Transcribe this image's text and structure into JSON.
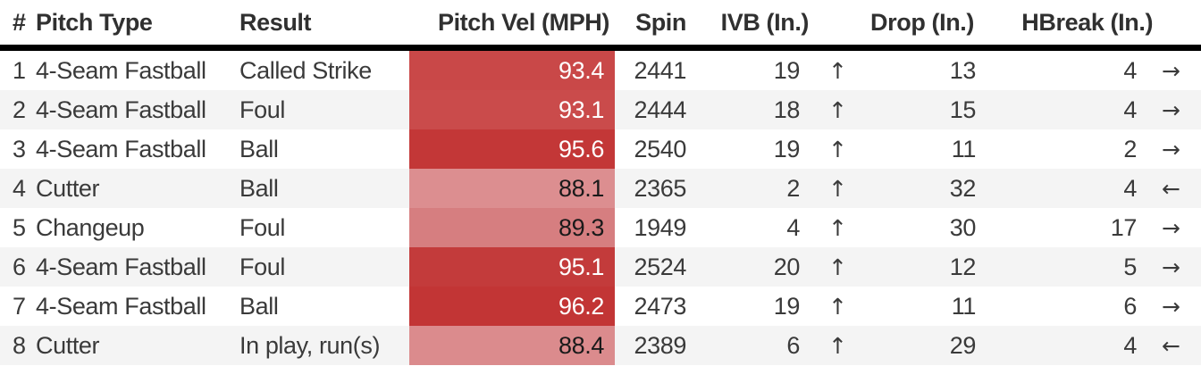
{
  "table": {
    "columns": {
      "num": "#",
      "pitch_type": "Pitch Type",
      "result": "Result",
      "velocity": "Pitch Vel (MPH)",
      "spin": "Spin",
      "ivb": "IVB (In.)",
      "drop": "Drop (In.)",
      "hbreak": "HBreak (In.)"
    },
    "rows": [
      {
        "num": "1",
        "pitch_type": "4-Seam Fastball",
        "result": "Called Strike",
        "velocity": "93.4",
        "velocity_bg": "#c94848",
        "velocity_fg": "#ffffff",
        "spin": "2441",
        "ivb": "19",
        "ivb_arrow": "↑",
        "drop": "13",
        "hbreak": "4",
        "hbreak_arrow": "→"
      },
      {
        "num": "2",
        "pitch_type": "4-Seam Fastball",
        "result": "Foul",
        "velocity": "93.1",
        "velocity_bg": "#ca4b4b",
        "velocity_fg": "#ffffff",
        "spin": "2444",
        "ivb": "18",
        "ivb_arrow": "↑",
        "drop": "15",
        "hbreak": "4",
        "hbreak_arrow": "→"
      },
      {
        "num": "3",
        "pitch_type": "4-Seam Fastball",
        "result": "Ball",
        "velocity": "95.6",
        "velocity_bg": "#c33737",
        "velocity_fg": "#ffffff",
        "spin": "2540",
        "ivb": "19",
        "ivb_arrow": "↑",
        "drop": "11",
        "hbreak": "2",
        "hbreak_arrow": "→"
      },
      {
        "num": "4",
        "pitch_type": "Cutter",
        "result": "Ball",
        "velocity": "88.1",
        "velocity_bg": "#dc8e90",
        "velocity_fg": "#1a1a1a",
        "spin": "2365",
        "ivb": "2",
        "ivb_arrow": "↑",
        "drop": "32",
        "hbreak": "4",
        "hbreak_arrow": "←"
      },
      {
        "num": "5",
        "pitch_type": "Changeup",
        "result": "Foul",
        "velocity": "89.3",
        "velocity_bg": "#d67e80",
        "velocity_fg": "#1a1a1a",
        "spin": "1949",
        "ivb": "4",
        "ivb_arrow": "↑",
        "drop": "30",
        "hbreak": "17",
        "hbreak_arrow": "→"
      },
      {
        "num": "6",
        "pitch_type": "4-Seam Fastball",
        "result": "Foul",
        "velocity": "95.1",
        "velocity_bg": "#c33b3b",
        "velocity_fg": "#ffffff",
        "spin": "2524",
        "ivb": "20",
        "ivb_arrow": "↑",
        "drop": "12",
        "hbreak": "5",
        "hbreak_arrow": "→"
      },
      {
        "num": "7",
        "pitch_type": "4-Seam Fastball",
        "result": "Ball",
        "velocity": "96.2",
        "velocity_bg": "#c23535",
        "velocity_fg": "#ffffff",
        "spin": "2473",
        "ivb": "19",
        "ivb_arrow": "↑",
        "drop": "11",
        "hbreak": "6",
        "hbreak_arrow": "→"
      },
      {
        "num": "8",
        "pitch_type": "Cutter",
        "result": "In play, run(s)",
        "velocity": "88.4",
        "velocity_bg": "#db8b8d",
        "velocity_fg": "#1a1a1a",
        "spin": "2389",
        "ivb": "6",
        "ivb_arrow": "↑",
        "drop": "29",
        "hbreak": "4",
        "hbreak_arrow": "←"
      }
    ]
  },
  "colors": {
    "header_text": "#303030",
    "row_text": "#3a3a3a",
    "even_row_bg": "#f4f4f4",
    "header_rule": "#000000"
  }
}
